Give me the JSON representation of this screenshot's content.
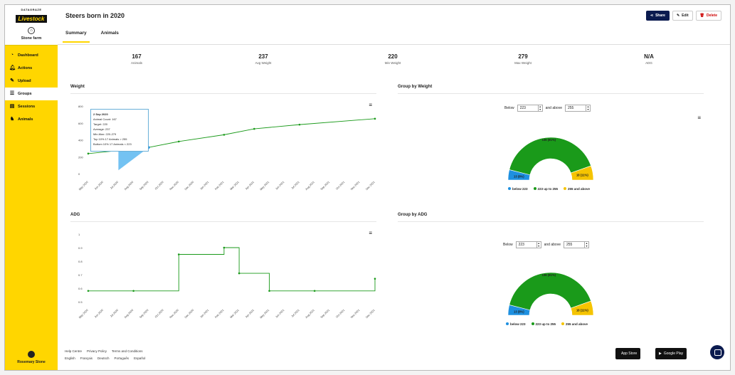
{
  "brand": {
    "top": "DATAGRAZE",
    "logo": "Livestock",
    "farm": "Stone farm"
  },
  "nav": [
    {
      "label": "Dashboard",
      "icon": "speedometer-icon"
    },
    {
      "label": "Actions",
      "icon": "bell-icon"
    },
    {
      "label": "Upload",
      "icon": "pencil-icon"
    },
    {
      "label": "Groups",
      "icon": "groups-icon",
      "active": true
    },
    {
      "label": "Sessions",
      "icon": "sessions-icon"
    },
    {
      "label": "Animals",
      "icon": "cow-icon"
    }
  ],
  "user": {
    "name": "Rosemary Stone"
  },
  "header": {
    "title": "Steers born in 2020",
    "tabs": [
      "Summary",
      "Animals"
    ],
    "buttons": {
      "share": "Share",
      "edit": "Edit",
      "delete": "Delete"
    }
  },
  "stats": [
    {
      "value": "167",
      "label": "Animals"
    },
    {
      "value": "237",
      "label": "Avg Weight"
    },
    {
      "value": "220",
      "label": "Min Weight"
    },
    {
      "value": "279",
      "label": "Max Weight"
    },
    {
      "value": "N/A",
      "label": "ADG"
    }
  ],
  "weight_panel": {
    "title": "Weight",
    "tooltip": [
      "2 Sep 2020",
      "Animal Count: 167",
      "Target: 220",
      "Average: 237",
      "Min-Max: 220-279",
      "Top 10% 17 Animals > 255",
      "Bottom 10% 17 Animals < 223"
    ]
  },
  "adg_panel": {
    "title": "ADG"
  },
  "group_weight": {
    "title": "Group by Weight",
    "below_label": "Below",
    "below_value": "223",
    "above_label": "and above",
    "above_value": "255",
    "slices": [
      "13 (8%)",
      "136 (81%)",
      "18 (11%)"
    ],
    "legend": [
      "below 223",
      "223 up to 255",
      "255 and above"
    ]
  },
  "group_adg": {
    "title": "Group by ADG",
    "below_label": "Below",
    "below_value": "223",
    "above_label": "and above",
    "above_value": "255",
    "slices": [
      "13 (8%)",
      "136 (81%)",
      "18 (11%)"
    ],
    "legend": [
      "below 223",
      "223 up to 255",
      "255 and above"
    ]
  },
  "footer": {
    "links": [
      "Help Centre",
      "Privacy Policy",
      "Terms and Conditions"
    ],
    "languages": [
      "English",
      "Français",
      "Deutsch",
      "Português",
      "Español"
    ],
    "app_store": "App Store",
    "google_play": "Google Play"
  },
  "colors": {
    "accent": "#ffd600",
    "green": "#1a9a1a",
    "blue": "#1e90e0",
    "yellow": "#f5c400",
    "navy": "#0b1b4f"
  },
  "chart_data": [
    {
      "type": "line",
      "title": "Weight",
      "categories": [
        "May 2020",
        "Jun 2020",
        "Jul 2020",
        "Aug 2020",
        "Sep 2020",
        "Oct 2020",
        "Nov 2020",
        "Dec 2020",
        "Jan 2021",
        "Feb 2021",
        "Mar 2021",
        "Apr 2021",
        "May 2021",
        "Jun 2021",
        "Jul 2021",
        "Aug 2021",
        "Sep 2021",
        "Oct 2021",
        "Nov 2021",
        "Dec 2021"
      ],
      "yticks": [
        0,
        200,
        400,
        600,
        800
      ],
      "ylim": [
        0,
        800
      ],
      "series": [
        {
          "values": [
            237,
            null,
            null,
            null,
            310,
            null,
            380,
            null,
            null,
            460,
            null,
            530,
            null,
            null,
            580,
            null,
            null,
            null,
            null,
            650
          ]
        }
      ]
    },
    {
      "type": "line",
      "title": "ADG",
      "categories": [
        "May 2020",
        "Jun 2020",
        "Jul 2020",
        "Aug 2020",
        "Sep 2020",
        "Oct 2020",
        "Nov 2020",
        "Dec 2020",
        "Jan 2021",
        "Feb 2021",
        "Mar 2021",
        "Apr 2021",
        "May 2021",
        "Jun 2021",
        "Jul 2021",
        "Aug 2021",
        "Sep 2021",
        "Oct 2021",
        "Nov 2021",
        "Dec 2021"
      ],
      "yticks": [
        0.5,
        0.6,
        0.7,
        0.8,
        0.9,
        1
      ],
      "ylim": [
        0.5,
        1
      ],
      "series": [
        {
          "step": true,
          "values": [
            0.58,
            null,
            null,
            0.58,
            null,
            null,
            0.85,
            null,
            null,
            0.9,
            0.71,
            null,
            0.58,
            null,
            null,
            0.58,
            null,
            null,
            null,
            0.67
          ]
        }
      ]
    },
    {
      "type": "pie",
      "title": "Group by Weight",
      "labels": [
        "below 223",
        "223 up to 255",
        "255 and above"
      ],
      "values": [
        13,
        136,
        18
      ]
    },
    {
      "type": "pie",
      "title": "Group by ADG",
      "labels": [
        "below 223",
        "223 up to 255",
        "255 and above"
      ],
      "values": [
        13,
        136,
        18
      ]
    }
  ]
}
